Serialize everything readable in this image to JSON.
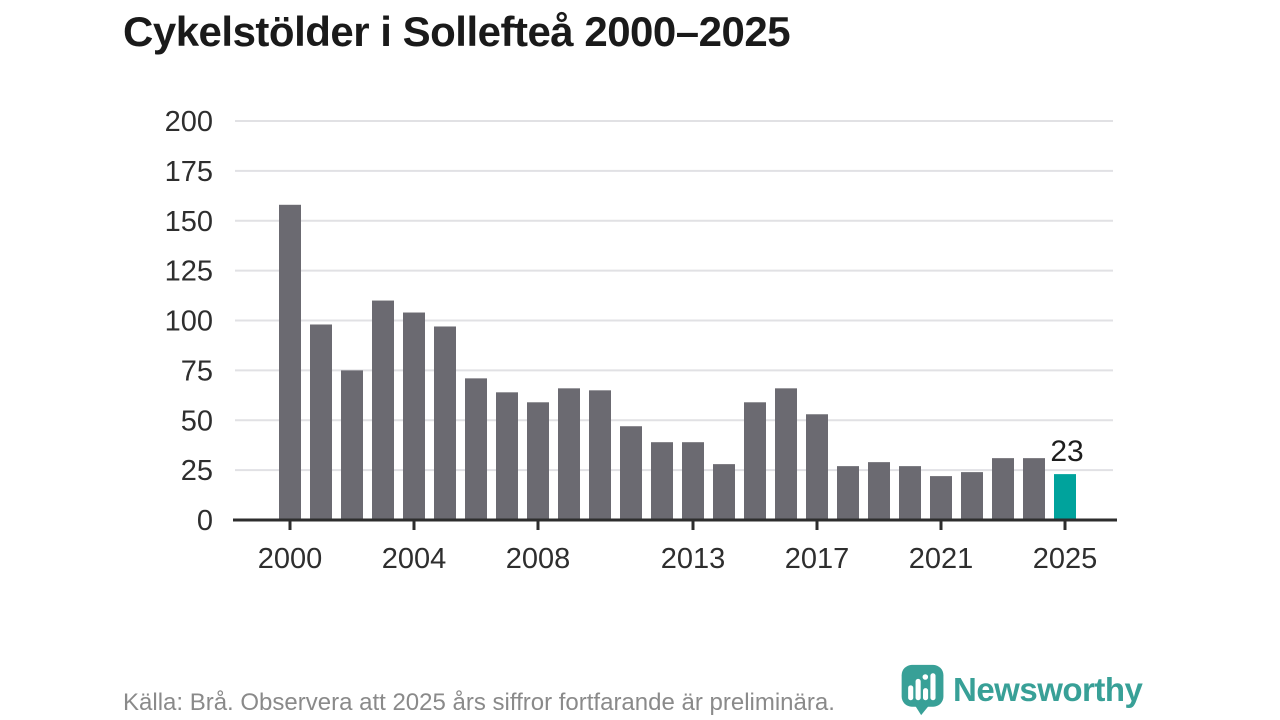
{
  "title": "Cykelstölder i Sollefteå 2000–2025",
  "footer": {
    "source_note": "Källa: Brå. Observera att 2025 års siffror fortfarande är preliminära."
  },
  "branding": {
    "logo_text": "Newsworthy",
    "logo_icon": "newsworthy-speech-bubble-bar-chart-icon",
    "logo_color": "#38a097"
  },
  "chart_data": {
    "type": "bar",
    "title": "Cykelstölder i Sollefteå 2000–2025",
    "categories": [
      2000,
      2001,
      2002,
      2003,
      2004,
      2005,
      2006,
      2007,
      2008,
      2009,
      2010,
      2011,
      2012,
      2013,
      2014,
      2015,
      2016,
      2017,
      2018,
      2019,
      2020,
      2021,
      2022,
      2023,
      2024,
      2025
    ],
    "values": [
      158,
      98,
      75,
      110,
      104,
      97,
      71,
      64,
      59,
      66,
      65,
      47,
      39,
      39,
      28,
      59,
      66,
      53,
      27,
      29,
      27,
      22,
      24,
      31,
      31,
      23
    ],
    "xlabel": "",
    "ylabel": "",
    "ylim": [
      0,
      200
    ],
    "yticks": [
      0,
      25,
      50,
      75,
      100,
      125,
      150,
      175,
      200
    ],
    "xticks": [
      2000,
      2004,
      2008,
      2013,
      2017,
      2021,
      2025
    ],
    "grid": "horizontal",
    "legend": "none",
    "bar_color": "#6b6a71",
    "grid_color": "#e1e1e4",
    "axis_color": "#2d2d2d",
    "tick_label_color": "#2e2e2e",
    "highlight": {
      "year": 2025,
      "color": "#00a39c"
    },
    "annotation": {
      "year": 2025,
      "text": "23",
      "color": "#1d1d1d"
    }
  }
}
